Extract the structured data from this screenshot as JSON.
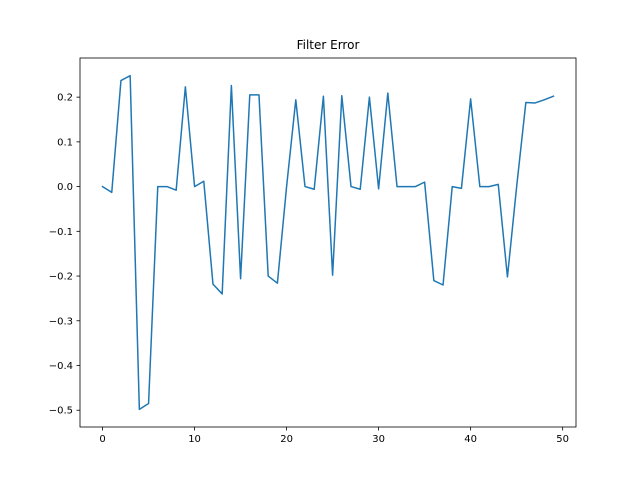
{
  "chart_data": {
    "type": "line",
    "title": "Filter Error",
    "xlabel": "",
    "ylabel": "",
    "xlim": [
      -2.45,
      51.45
    ],
    "ylim": [
      -0.5375,
      0.2875
    ],
    "grid": false,
    "x_ticks": [
      0,
      10,
      20,
      30,
      40,
      50
    ],
    "x_tick_labels": [
      "0",
      "10",
      "20",
      "30",
      "40",
      "50"
    ],
    "y_ticks": [
      -0.5,
      -0.4,
      -0.3,
      -0.2,
      -0.1,
      0.0,
      0.1,
      0.2
    ],
    "y_tick_labels": [
      "−0.5",
      "−0.4",
      "−0.3",
      "−0.2",
      "−0.1",
      "0.0",
      "0.1",
      "0.2"
    ],
    "series": [
      {
        "color": "#1f77b4",
        "x": [
          0,
          1,
          2,
          3,
          4,
          5,
          6,
          7,
          8,
          9,
          10,
          11,
          12,
          13,
          14,
          15,
          16,
          17,
          18,
          19,
          20,
          21,
          22,
          23,
          24,
          25,
          26,
          27,
          28,
          29,
          30,
          31,
          32,
          33,
          34,
          35,
          36,
          37,
          38,
          39,
          40,
          41,
          42,
          43,
          44,
          45,
          46,
          47,
          48,
          49
        ],
        "values": [
          0.0,
          -0.013,
          0.237,
          0.248,
          -0.498,
          -0.485,
          0.0,
          0.0,
          -0.008,
          0.223,
          0.0,
          0.012,
          -0.218,
          -0.24,
          0.226,
          -0.206,
          0.205,
          0.205,
          -0.2,
          -0.216,
          0.0,
          0.194,
          0.0,
          -0.006,
          0.202,
          -0.198,
          0.203,
          0.0,
          -0.006,
          0.2,
          -0.005,
          0.209,
          0.0,
          0.0,
          0.0,
          0.01,
          -0.21,
          -0.22,
          0.0,
          -0.004,
          0.196,
          0.0,
          0.0,
          0.005,
          -0.202,
          0.0,
          0.188,
          0.187,
          0.194,
          0.202
        ]
      }
    ]
  }
}
